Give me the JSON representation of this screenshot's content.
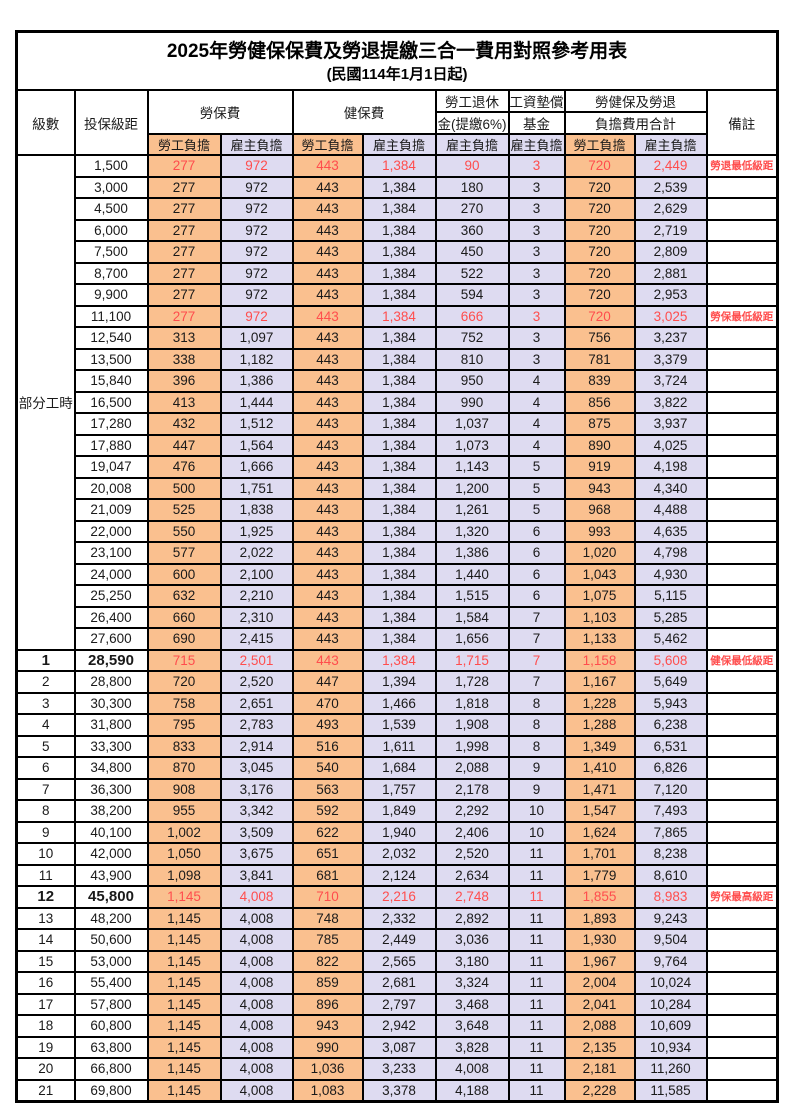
{
  "title": "2025年勞健保保費及勞退提繳三合一費用對照參考用表",
  "subtitle": "(民國114年1月1日起)",
  "header": {
    "level": "級數",
    "bracket": "投保級距",
    "labor_insurance": "勞保費",
    "health_insurance": "健保費",
    "pension_line1": "勞工退休",
    "pension_line2": "金(提繳6%)",
    "wage_fund_line1": "工資墊償",
    "wage_fund_line2": "基金",
    "total_line1": "勞健保及勞退",
    "total_line2": "負擔費用合計",
    "remark": "備註",
    "employee_label": "勞工負擔",
    "employer_label": "雇主負擔"
  },
  "part_time_label": "部分工時",
  "part_time_span": 23,
  "colors": {
    "employee_bg": "#FAC08F",
    "employer_bg": "#DEDBF1",
    "highlight_text": "#FF4D4D",
    "border": "#000000"
  },
  "rows": [
    {
      "level": null,
      "bracket": "1,500",
      "values": [
        "277",
        "972",
        "443",
        "1,384",
        "90",
        "3",
        "720",
        "2,449"
      ],
      "remark": "勞退最低級距",
      "red": true,
      "bold": false
    },
    {
      "level": null,
      "bracket": "3,000",
      "values": [
        "277",
        "972",
        "443",
        "1,384",
        "180",
        "3",
        "720",
        "2,539"
      ],
      "remark": "",
      "red": false,
      "bold": false
    },
    {
      "level": null,
      "bracket": "4,500",
      "values": [
        "277",
        "972",
        "443",
        "1,384",
        "270",
        "3",
        "720",
        "2,629"
      ],
      "remark": "",
      "red": false,
      "bold": false
    },
    {
      "level": null,
      "bracket": "6,000",
      "values": [
        "277",
        "972",
        "443",
        "1,384",
        "360",
        "3",
        "720",
        "2,719"
      ],
      "remark": "",
      "red": false,
      "bold": false
    },
    {
      "level": null,
      "bracket": "7,500",
      "values": [
        "277",
        "972",
        "443",
        "1,384",
        "450",
        "3",
        "720",
        "2,809"
      ],
      "remark": "",
      "red": false,
      "bold": false
    },
    {
      "level": null,
      "bracket": "8,700",
      "values": [
        "277",
        "972",
        "443",
        "1,384",
        "522",
        "3",
        "720",
        "2,881"
      ],
      "remark": "",
      "red": false,
      "bold": false
    },
    {
      "level": null,
      "bracket": "9,900",
      "values": [
        "277",
        "972",
        "443",
        "1,384",
        "594",
        "3",
        "720",
        "2,953"
      ],
      "remark": "",
      "red": false,
      "bold": false
    },
    {
      "level": null,
      "bracket": "11,100",
      "values": [
        "277",
        "972",
        "443",
        "1,384",
        "666",
        "3",
        "720",
        "3,025"
      ],
      "remark": "勞保最低級距",
      "red": true,
      "bold": false
    },
    {
      "level": null,
      "bracket": "12,540",
      "values": [
        "313",
        "1,097",
        "443",
        "1,384",
        "752",
        "3",
        "756",
        "3,237"
      ],
      "remark": "",
      "red": false,
      "bold": false
    },
    {
      "level": null,
      "bracket": "13,500",
      "values": [
        "338",
        "1,182",
        "443",
        "1,384",
        "810",
        "3",
        "781",
        "3,379"
      ],
      "remark": "",
      "red": false,
      "bold": false
    },
    {
      "level": null,
      "bracket": "15,840",
      "values": [
        "396",
        "1,386",
        "443",
        "1,384",
        "950",
        "4",
        "839",
        "3,724"
      ],
      "remark": "",
      "red": false,
      "bold": false
    },
    {
      "level": null,
      "bracket": "16,500",
      "values": [
        "413",
        "1,444",
        "443",
        "1,384",
        "990",
        "4",
        "856",
        "3,822"
      ],
      "remark": "",
      "red": false,
      "bold": false
    },
    {
      "level": null,
      "bracket": "17,280",
      "values": [
        "432",
        "1,512",
        "443",
        "1,384",
        "1,037",
        "4",
        "875",
        "3,937"
      ],
      "remark": "",
      "red": false,
      "bold": false
    },
    {
      "level": null,
      "bracket": "17,880",
      "values": [
        "447",
        "1,564",
        "443",
        "1,384",
        "1,073",
        "4",
        "890",
        "4,025"
      ],
      "remark": "",
      "red": false,
      "bold": false
    },
    {
      "level": null,
      "bracket": "19,047",
      "values": [
        "476",
        "1,666",
        "443",
        "1,384",
        "1,143",
        "5",
        "919",
        "4,198"
      ],
      "remark": "",
      "red": false,
      "bold": false
    },
    {
      "level": null,
      "bracket": "20,008",
      "values": [
        "500",
        "1,751",
        "443",
        "1,384",
        "1,200",
        "5",
        "943",
        "4,340"
      ],
      "remark": "",
      "red": false,
      "bold": false
    },
    {
      "level": null,
      "bracket": "21,009",
      "values": [
        "525",
        "1,838",
        "443",
        "1,384",
        "1,261",
        "5",
        "968",
        "4,488"
      ],
      "remark": "",
      "red": false,
      "bold": false
    },
    {
      "level": null,
      "bracket": "22,000",
      "values": [
        "550",
        "1,925",
        "443",
        "1,384",
        "1,320",
        "6",
        "993",
        "4,635"
      ],
      "remark": "",
      "red": false,
      "bold": false
    },
    {
      "level": null,
      "bracket": "23,100",
      "values": [
        "577",
        "2,022",
        "443",
        "1,384",
        "1,386",
        "6",
        "1,020",
        "4,798"
      ],
      "remark": "",
      "red": false,
      "bold": false
    },
    {
      "level": null,
      "bracket": "24,000",
      "values": [
        "600",
        "2,100",
        "443",
        "1,384",
        "1,440",
        "6",
        "1,043",
        "4,930"
      ],
      "remark": "",
      "red": false,
      "bold": false
    },
    {
      "level": null,
      "bracket": "25,250",
      "values": [
        "632",
        "2,210",
        "443",
        "1,384",
        "1,515",
        "6",
        "1,075",
        "5,115"
      ],
      "remark": "",
      "red": false,
      "bold": false
    },
    {
      "level": null,
      "bracket": "26,400",
      "values": [
        "660",
        "2,310",
        "443",
        "1,384",
        "1,584",
        "7",
        "1,103",
        "5,285"
      ],
      "remark": "",
      "red": false,
      "bold": false
    },
    {
      "level": null,
      "bracket": "27,600",
      "values": [
        "690",
        "2,415",
        "443",
        "1,384",
        "1,656",
        "7",
        "1,133",
        "5,462"
      ],
      "remark": "",
      "red": false,
      "bold": false
    },
    {
      "level": "1",
      "bracket": "28,590",
      "values": [
        "715",
        "2,501",
        "443",
        "1,384",
        "1,715",
        "7",
        "1,158",
        "5,608"
      ],
      "remark": "健保最低級距",
      "red": true,
      "bold": true
    },
    {
      "level": "2",
      "bracket": "28,800",
      "values": [
        "720",
        "2,520",
        "447",
        "1,394",
        "1,728",
        "7",
        "1,167",
        "5,649"
      ],
      "remark": "",
      "red": false,
      "bold": false
    },
    {
      "level": "3",
      "bracket": "30,300",
      "values": [
        "758",
        "2,651",
        "470",
        "1,466",
        "1,818",
        "8",
        "1,228",
        "5,943"
      ],
      "remark": "",
      "red": false,
      "bold": false
    },
    {
      "level": "4",
      "bracket": "31,800",
      "values": [
        "795",
        "2,783",
        "493",
        "1,539",
        "1,908",
        "8",
        "1,288",
        "6,238"
      ],
      "remark": "",
      "red": false,
      "bold": false
    },
    {
      "level": "5",
      "bracket": "33,300",
      "values": [
        "833",
        "2,914",
        "516",
        "1,611",
        "1,998",
        "8",
        "1,349",
        "6,531"
      ],
      "remark": "",
      "red": false,
      "bold": false
    },
    {
      "level": "6",
      "bracket": "34,800",
      "values": [
        "870",
        "3,045",
        "540",
        "1,684",
        "2,088",
        "9",
        "1,410",
        "6,826"
      ],
      "remark": "",
      "red": false,
      "bold": false
    },
    {
      "level": "7",
      "bracket": "36,300",
      "values": [
        "908",
        "3,176",
        "563",
        "1,757",
        "2,178",
        "9",
        "1,471",
        "7,120"
      ],
      "remark": "",
      "red": false,
      "bold": false
    },
    {
      "level": "8",
      "bracket": "38,200",
      "values": [
        "955",
        "3,342",
        "592",
        "1,849",
        "2,292",
        "10",
        "1,547",
        "7,493"
      ],
      "remark": "",
      "red": false,
      "bold": false
    },
    {
      "level": "9",
      "bracket": "40,100",
      "values": [
        "1,002",
        "3,509",
        "622",
        "1,940",
        "2,406",
        "10",
        "1,624",
        "7,865"
      ],
      "remark": "",
      "red": false,
      "bold": false
    },
    {
      "level": "10",
      "bracket": "42,000",
      "values": [
        "1,050",
        "3,675",
        "651",
        "2,032",
        "2,520",
        "11",
        "1,701",
        "8,238"
      ],
      "remark": "",
      "red": false,
      "bold": false
    },
    {
      "level": "11",
      "bracket": "43,900",
      "values": [
        "1,098",
        "3,841",
        "681",
        "2,124",
        "2,634",
        "11",
        "1,779",
        "8,610"
      ],
      "remark": "",
      "red": false,
      "bold": false
    },
    {
      "level": "12",
      "bracket": "45,800",
      "values": [
        "1,145",
        "4,008",
        "710",
        "2,216",
        "2,748",
        "11",
        "1,855",
        "8,983"
      ],
      "remark": "勞保最高級距",
      "red": true,
      "bold": true
    },
    {
      "level": "13",
      "bracket": "48,200",
      "values": [
        "1,145",
        "4,008",
        "748",
        "2,332",
        "2,892",
        "11",
        "1,893",
        "9,243"
      ],
      "remark": "",
      "red": false,
      "bold": false
    },
    {
      "level": "14",
      "bracket": "50,600",
      "values": [
        "1,145",
        "4,008",
        "785",
        "2,449",
        "3,036",
        "11",
        "1,930",
        "9,504"
      ],
      "remark": "",
      "red": false,
      "bold": false
    },
    {
      "level": "15",
      "bracket": "53,000",
      "values": [
        "1,145",
        "4,008",
        "822",
        "2,565",
        "3,180",
        "11",
        "1,967",
        "9,764"
      ],
      "remark": "",
      "red": false,
      "bold": false
    },
    {
      "level": "16",
      "bracket": "55,400",
      "values": [
        "1,145",
        "4,008",
        "859",
        "2,681",
        "3,324",
        "11",
        "2,004",
        "10,024"
      ],
      "remark": "",
      "red": false,
      "bold": false
    },
    {
      "level": "17",
      "bracket": "57,800",
      "values": [
        "1,145",
        "4,008",
        "896",
        "2,797",
        "3,468",
        "11",
        "2,041",
        "10,284"
      ],
      "remark": "",
      "red": false,
      "bold": false
    },
    {
      "level": "18",
      "bracket": "60,800",
      "values": [
        "1,145",
        "4,008",
        "943",
        "2,942",
        "3,648",
        "11",
        "2,088",
        "10,609"
      ],
      "remark": "",
      "red": false,
      "bold": false
    },
    {
      "level": "19",
      "bracket": "63,800",
      "values": [
        "1,145",
        "4,008",
        "990",
        "3,087",
        "3,828",
        "11",
        "2,135",
        "10,934"
      ],
      "remark": "",
      "red": false,
      "bold": false
    },
    {
      "level": "20",
      "bracket": "66,800",
      "values": [
        "1,145",
        "4,008",
        "1,036",
        "3,233",
        "4,008",
        "11",
        "2,181",
        "11,260"
      ],
      "remark": "",
      "red": false,
      "bold": false
    },
    {
      "level": "21",
      "bracket": "69,800",
      "values": [
        "1,145",
        "4,008",
        "1,083",
        "3,378",
        "4,188",
        "11",
        "2,228",
        "11,585"
      ],
      "remark": "",
      "red": false,
      "bold": false
    }
  ]
}
